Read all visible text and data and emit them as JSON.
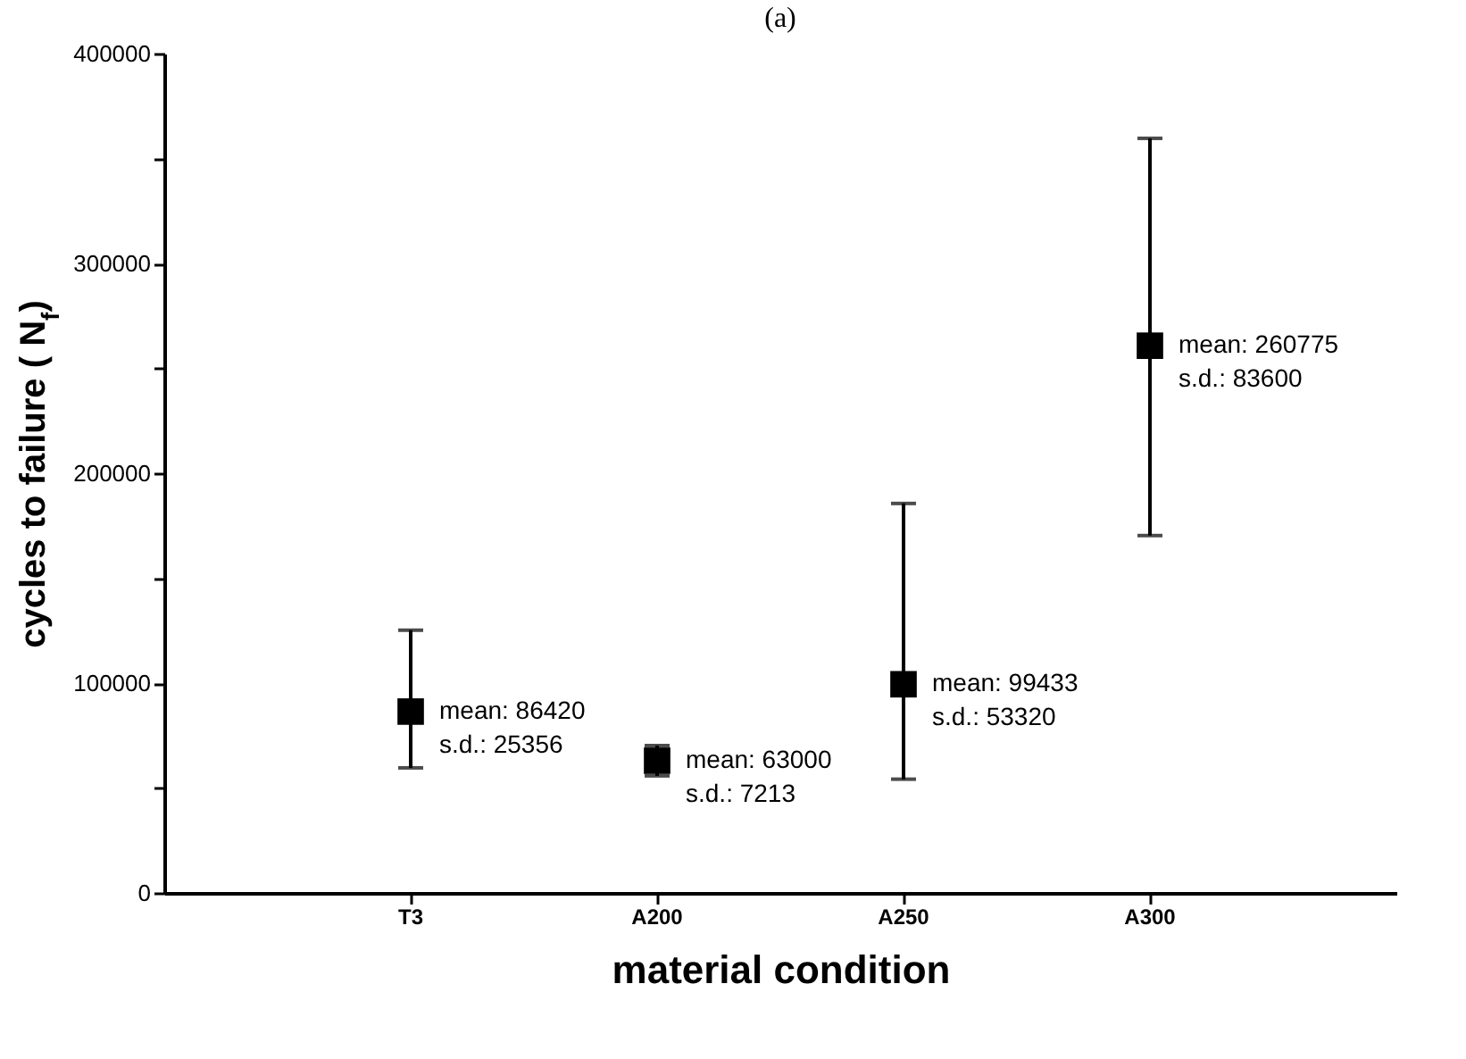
{
  "chart_data": {
    "type": "scatter",
    "title": "(a)",
    "xlabel": "material condition",
    "ylabel": "cycles to failure ( N$_{f}$)",
    "categories": [
      "T3",
      "A200",
      "A250",
      "A300"
    ],
    "series": [
      {
        "color": "#000000",
        "values": [
          86420,
          63000,
          99433,
          260775
        ],
        "errors": [
          [
            59600,
            125200
          ],
          7213,
          [
            54200,
            185600
          ],
          [
            170300,
            359600
          ]
        ]
      }
    ],
    "ylim": [
      0,
      400000
    ],
    "yticks": [
      0,
      {
        "value": 50000,
        "label": null
      },
      100000,
      {
        "value": 150000,
        "label": null
      },
      200000,
      {
        "value": 250000,
        "label": null
      },
      300000,
      {
        "value": 350000,
        "label": null
      },
      400000
    ],
    "marker": "square",
    "grid": false,
    "annotations": [
      {
        "text": "mean: 86420\ns.d.: 25356",
        "x": "T3",
        "y": 86420
      },
      {
        "text": "mean: 63000\ns.d.: 7213",
        "x": "A200",
        "y": 63000
      },
      {
        "text": "mean: 99433\ns.d.: 53320",
        "x": "A250",
        "y": 99433
      },
      {
        "text": "mean: 260775\ns.d.: 83600",
        "x": "A300",
        "y": 260775
      }
    ]
  }
}
